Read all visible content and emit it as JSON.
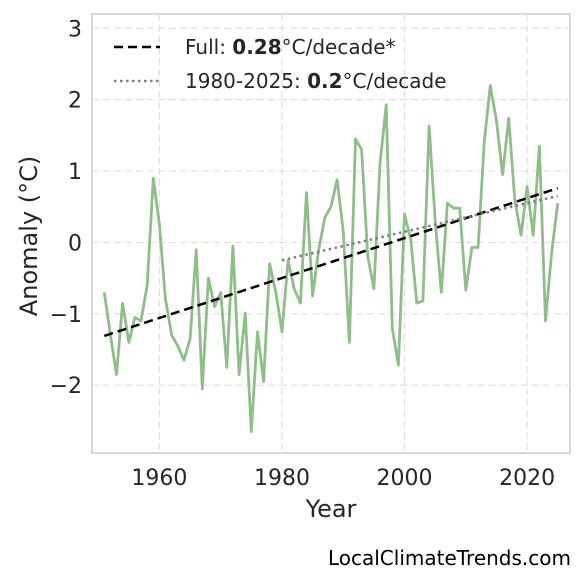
{
  "chart_data": {
    "type": "line",
    "xlabel": "Year",
    "ylabel": "Anomaly (°C)",
    "xlim": [
      1949,
      2027
    ],
    "ylim": [
      -2.95,
      3.2
    ],
    "xticks": [
      1960,
      1980,
      2000,
      2020
    ],
    "yticks": [
      -2,
      -1,
      0,
      1,
      2,
      3
    ],
    "ytick_labels": [
      "−2",
      "−1",
      "0",
      "1",
      "2",
      "3"
    ],
    "grid": true,
    "legend_position": "top-left",
    "series": [
      {
        "role": "anomaly",
        "color": "#8dbf87",
        "x": [
          1951,
          1952,
          1953,
          1954,
          1955,
          1956,
          1957,
          1958,
          1959,
          1960,
          1961,
          1962,
          1963,
          1964,
          1965,
          1966,
          1967,
          1968,
          1969,
          1970,
          1971,
          1972,
          1973,
          1974,
          1975,
          1976,
          1977,
          1978,
          1979,
          1980,
          1981,
          1982,
          1983,
          1984,
          1985,
          1986,
          1987,
          1988,
          1989,
          1990,
          1991,
          1992,
          1993,
          1994,
          1995,
          1996,
          1997,
          1998,
          1999,
          2000,
          2001,
          2002,
          2003,
          2004,
          2005,
          2006,
          2007,
          2008,
          2009,
          2010,
          2011,
          2012,
          2013,
          2014,
          2015,
          2016,
          2017,
          2018,
          2019,
          2020,
          2021,
          2022,
          2023,
          2024,
          2025
        ],
        "y": [
          -0.7,
          -1.3,
          -1.85,
          -0.85,
          -1.4,
          -1.05,
          -1.1,
          -0.6,
          0.9,
          0.25,
          -0.8,
          -1.3,
          -1.45,
          -1.65,
          -1.35,
          -0.1,
          -2.05,
          -0.5,
          -0.9,
          -0.7,
          -1.75,
          -0.05,
          -1.85,
          -0.99,
          -2.65,
          -1.25,
          -1.95,
          -0.3,
          -0.7,
          -1.25,
          -0.25,
          -0.65,
          -0.85,
          0.7,
          -0.75,
          -0.1,
          0.35,
          0.5,
          0.88,
          0.15,
          -1.4,
          1.45,
          1.3,
          -0.2,
          -0.65,
          1.1,
          1.93,
          -1.2,
          -1.72,
          0.4,
          0.05,
          -0.85,
          -0.82,
          1.63,
          0.3,
          -0.7,
          0.55,
          0.48,
          0.48,
          -0.67,
          -0.07,
          -0.07,
          1.4,
          2.2,
          1.7,
          0.95,
          1.74,
          0.6,
          0.1,
          0.78,
          0.1,
          1.35,
          -1.1,
          -0.15,
          0.55
        ]
      },
      {
        "role": "full-trend",
        "color": "#000000",
        "style": "dashed",
        "x": [
          1951,
          2025
        ],
        "y": [
          -1.31,
          0.76
        ]
      },
      {
        "role": "recent-trend",
        "color": "#808080",
        "style": "dotted",
        "x": [
          1980,
          2025
        ],
        "y": [
          -0.25,
          0.65
        ]
      }
    ],
    "legend": [
      {
        "style": "dashed",
        "color": "#000000",
        "prefix": "Full: ",
        "value": "0.28",
        "suffix": "°C/decade*"
      },
      {
        "style": "dotted",
        "color": "#808080",
        "prefix": "1980-2025: ",
        "value": "0.2",
        "suffix": "°C/decade"
      }
    ]
  },
  "source": "LocalClimateTrends.com"
}
